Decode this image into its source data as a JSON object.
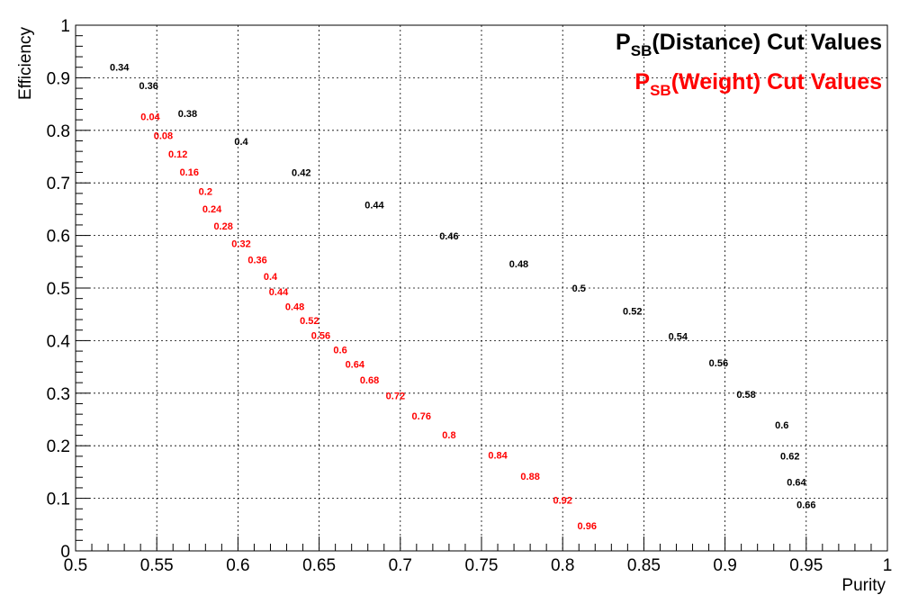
{
  "chart_data": {
    "type": "scatter",
    "xlabel": "Purity",
    "ylabel": "Efficiency",
    "xlim": [
      0.5,
      1.0
    ],
    "ylim": [
      0.0,
      1.0
    ],
    "xticks": [
      "0.5",
      "0.55",
      "0.6",
      "0.65",
      "0.7",
      "0.75",
      "0.8",
      "0.85",
      "0.9",
      "0.95",
      "1"
    ],
    "yticks": [
      "0",
      "0.1",
      "0.2",
      "0.3",
      "0.4",
      "0.5",
      "0.6",
      "0.7",
      "0.8",
      "0.9",
      "1"
    ],
    "grid": true,
    "legend_position": "top-right",
    "series": [
      {
        "name": "P_SB(Distance) Cut Values",
        "legend_main": "P",
        "legend_sub": "SB",
        "legend_rest": "(Distance) Cut Values",
        "color": "#000000",
        "points": [
          {
            "x": 0.527,
            "y": 0.92,
            "label": "0.34"
          },
          {
            "x": 0.545,
            "y": 0.885,
            "label": "0.36"
          },
          {
            "x": 0.569,
            "y": 0.832,
            "label": "0.38"
          },
          {
            "x": 0.602,
            "y": 0.779,
            "label": "0.4"
          },
          {
            "x": 0.639,
            "y": 0.72,
            "label": "0.42"
          },
          {
            "x": 0.684,
            "y": 0.658,
            "label": "0.44"
          },
          {
            "x": 0.73,
            "y": 0.599,
            "label": "0.46"
          },
          {
            "x": 0.773,
            "y": 0.546,
            "label": "0.48"
          },
          {
            "x": 0.81,
            "y": 0.5,
            "label": "0.5"
          },
          {
            "x": 0.843,
            "y": 0.456,
            "label": "0.52"
          },
          {
            "x": 0.871,
            "y": 0.408,
            "label": "0.54"
          },
          {
            "x": 0.896,
            "y": 0.358,
            "label": "0.56"
          },
          {
            "x": 0.913,
            "y": 0.298,
            "label": "0.58"
          },
          {
            "x": 0.935,
            "y": 0.24,
            "label": "0.6"
          },
          {
            "x": 0.94,
            "y": 0.181,
            "label": "0.62"
          },
          {
            "x": 0.944,
            "y": 0.131,
            "label": "0.64"
          },
          {
            "x": 0.95,
            "y": 0.088,
            "label": "0.66"
          }
        ]
      },
      {
        "name": "P_SB(Weight) Cut Values",
        "legend_main": "P",
        "legend_sub": "SB",
        "legend_rest": "(Weight) Cut Values",
        "color": "#ff0000",
        "points": [
          {
            "x": 0.546,
            "y": 0.826,
            "label": "0.04"
          },
          {
            "x": 0.554,
            "y": 0.79,
            "label": "0.08"
          },
          {
            "x": 0.563,
            "y": 0.755,
            "label": "0.12"
          },
          {
            "x": 0.57,
            "y": 0.721,
            "label": "0.16"
          },
          {
            "x": 0.58,
            "y": 0.684,
            "label": "0.2"
          },
          {
            "x": 0.584,
            "y": 0.651,
            "label": "0.24"
          },
          {
            "x": 0.591,
            "y": 0.618,
            "label": "0.28"
          },
          {
            "x": 0.602,
            "y": 0.585,
            "label": "0.32"
          },
          {
            "x": 0.612,
            "y": 0.554,
            "label": "0.36"
          },
          {
            "x": 0.62,
            "y": 0.522,
            "label": "0.4"
          },
          {
            "x": 0.625,
            "y": 0.493,
            "label": "0.44"
          },
          {
            "x": 0.635,
            "y": 0.465,
            "label": "0.48"
          },
          {
            "x": 0.644,
            "y": 0.438,
            "label": "0.52"
          },
          {
            "x": 0.651,
            "y": 0.41,
            "label": "0.56"
          },
          {
            "x": 0.663,
            "y": 0.383,
            "label": "0.6"
          },
          {
            "x": 0.672,
            "y": 0.355,
            "label": "0.64"
          },
          {
            "x": 0.681,
            "y": 0.325,
            "label": "0.68"
          },
          {
            "x": 0.697,
            "y": 0.295,
            "label": "0.72"
          },
          {
            "x": 0.713,
            "y": 0.257,
            "label": "0.76"
          },
          {
            "x": 0.73,
            "y": 0.221,
            "label": "0.8"
          },
          {
            "x": 0.76,
            "y": 0.182,
            "label": "0.84"
          },
          {
            "x": 0.78,
            "y": 0.142,
            "label": "0.88"
          },
          {
            "x": 0.8,
            "y": 0.097,
            "label": "0.92"
          },
          {
            "x": 0.815,
            "y": 0.048,
            "label": "0.96"
          }
        ]
      }
    ]
  }
}
